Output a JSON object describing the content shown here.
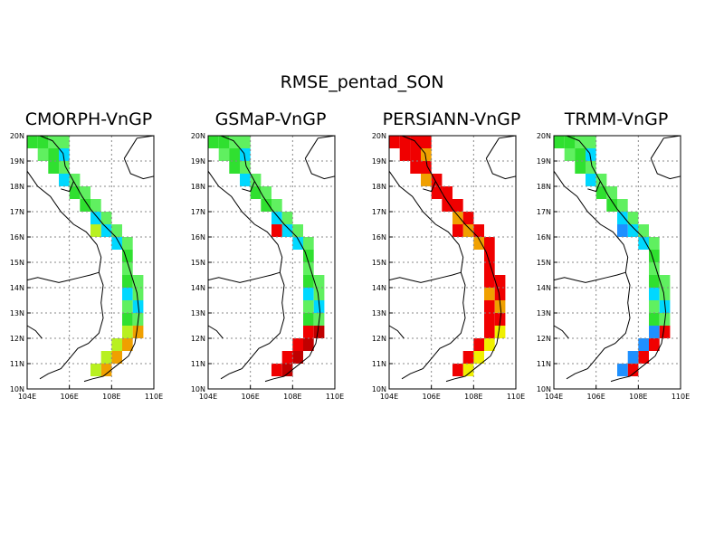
{
  "figure": {
    "title": "RMSE_pentad_SON",
    "lat_ticks": [
      "20N",
      "19N",
      "18N",
      "17N",
      "16N",
      "15N",
      "14N",
      "13N",
      "12N",
      "11N",
      "10N"
    ],
    "lon_ticks": [
      "104E",
      "106E",
      "108E",
      "110E"
    ],
    "extent": {
      "lon": [
        104,
        110
      ],
      "lat": [
        10,
        20
      ]
    },
    "colors": {
      "blue": "#1e90ff",
      "cyan": "#00d8ff",
      "lightgreen": "#60f060",
      "green": "#30e030",
      "yellowgreen": "#b8f020",
      "yellow": "#f0f000",
      "orange": "#f0a000",
      "red": "#f00000",
      "darkred": "#c00000"
    }
  },
  "panels": [
    {
      "title": "CMORPH-VnGP",
      "scheme": "cmorph"
    },
    {
      "title": "GSMaP-VnGP",
      "scheme": "gsmap"
    },
    {
      "title": "PERSIANN-VnGP",
      "scheme": "persiann"
    },
    {
      "title": "TRMM-VnGP",
      "scheme": "trmm"
    }
  ]
}
